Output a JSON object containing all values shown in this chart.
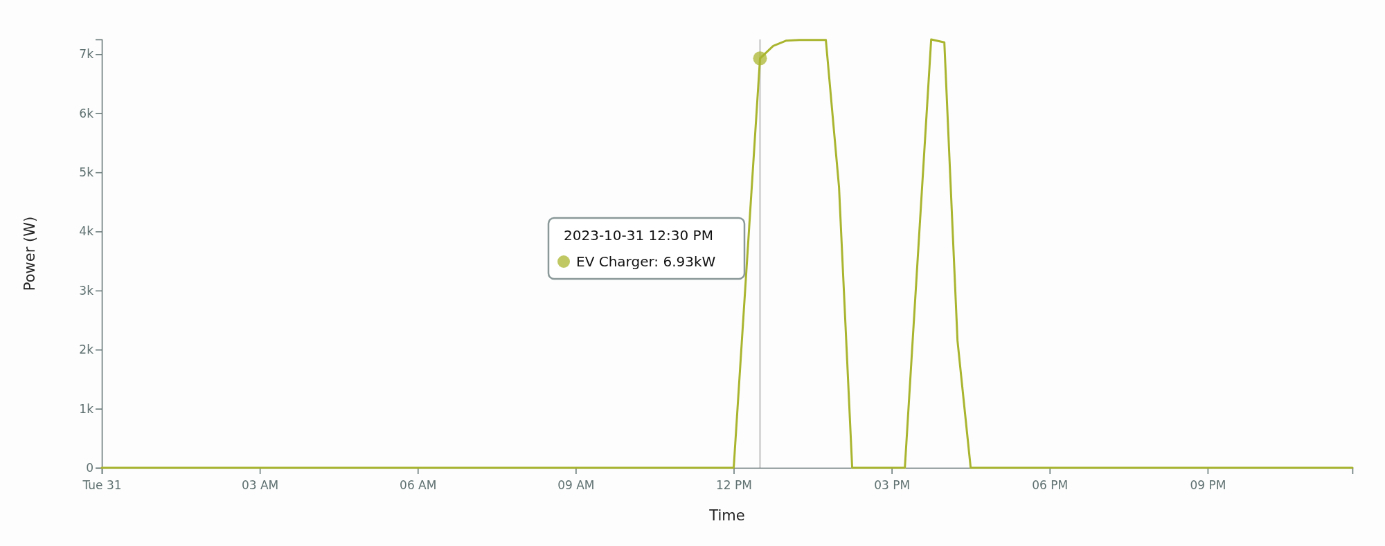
{
  "chart_data": {
    "type": "line",
    "xlabel": "Time",
    "ylabel": "Power (W)",
    "x": [
      "2023-10-31T00:00",
      "2023-10-31T12:00",
      "2023-10-31T12:30",
      "2023-10-31T12:45",
      "2023-10-31T13:00",
      "2023-10-31T13:15",
      "2023-10-31T13:30",
      "2023-10-31T13:45",
      "2023-10-31T14:00",
      "2023-10-31T14:15",
      "2023-10-31T15:15",
      "2023-10-31T15:45",
      "2023-10-31T16:00",
      "2023-10-31T16:15",
      "2023-10-31T16:30",
      "2023-10-31T23:45"
    ],
    "series": [
      {
        "color": "#a9b52f",
        "values": [
          0,
          0,
          6930,
          7140,
          7230,
          7240,
          7240,
          7240,
          4750,
          0,
          0,
          7250,
          7200,
          2150,
          0,
          0
        ]
      }
    ],
    "xlim": [
      "2023-10-31T00:00",
      "2023-10-31T23:45"
    ],
    "xticks": [
      {
        "value": "2023-10-31T00:00",
        "label": "Tue 31"
      },
      {
        "value": "2023-10-31T03:00",
        "label": "03 AM"
      },
      {
        "value": "2023-10-31T06:00",
        "label": "06 AM"
      },
      {
        "value": "2023-10-31T09:00",
        "label": "09 AM"
      },
      {
        "value": "2023-10-31T12:00",
        "label": "12 PM"
      },
      {
        "value": "2023-10-31T15:00",
        "label": "03 PM"
      },
      {
        "value": "2023-10-31T18:00",
        "label": "06 PM"
      },
      {
        "value": "2023-10-31T21:00",
        "label": "09 PM"
      }
    ],
    "ylim": [
      0,
      7250
    ],
    "yticks": [
      {
        "value": 0,
        "label": "0"
      },
      {
        "value": 1000,
        "label": "1k"
      },
      {
        "value": 2000,
        "label": "2k"
      },
      {
        "value": 3000,
        "label": "3k"
      },
      {
        "value": 4000,
        "label": "4k"
      },
      {
        "value": 5000,
        "label": "5k"
      },
      {
        "value": 6000,
        "label": "6k"
      },
      {
        "value": 7000,
        "label": "7k"
      }
    ],
    "ref_lines": [
      {
        "axis": "x",
        "value": "2023-10-31T12:30",
        "color": "#d6d6d6"
      }
    ],
    "annotations": [
      "2023-10-31 12:30 PM",
      "EV Charger: 6.93kW"
    ]
  }
}
